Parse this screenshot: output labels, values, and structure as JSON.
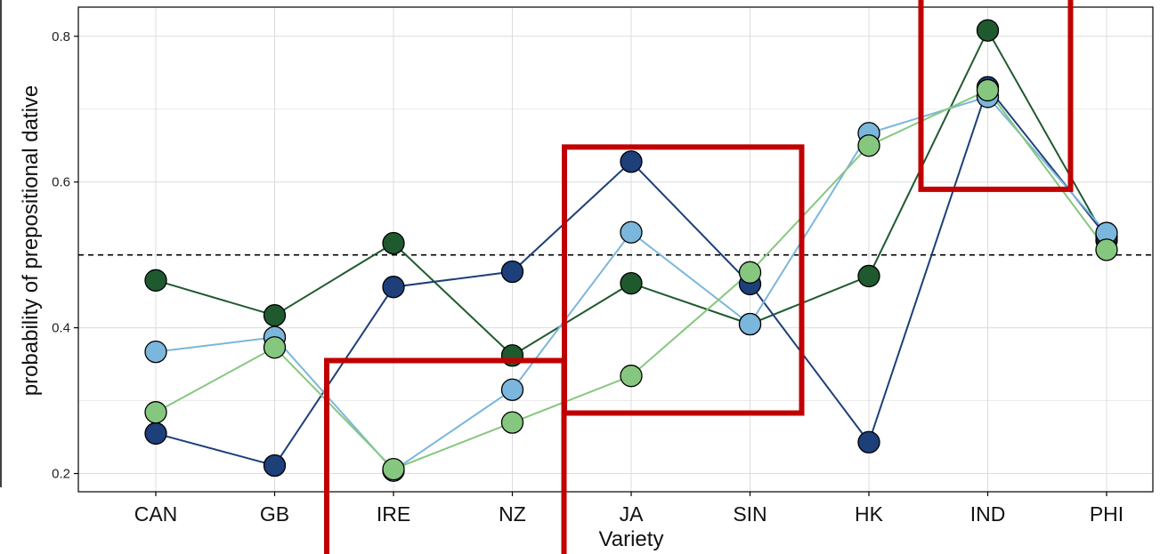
{
  "chart_data": {
    "type": "line",
    "xlabel": "Variety",
    "ylabel": "probability of prepositional dative",
    "categories": [
      "CAN",
      "GB",
      "IRE",
      "NZ",
      "JA",
      "SIN",
      "HK",
      "IND",
      "PHI"
    ],
    "ylim": [
      0.175,
      0.84
    ],
    "yticks": [
      0.2,
      0.4,
      0.6,
      0.8
    ],
    "ytick_labels": [
      "0.2",
      "0.4",
      "0.6",
      "0.8"
    ],
    "reference_line": 0.5,
    "grid": true,
    "legend": "none",
    "series": [
      {
        "color": "#1f5a2f",
        "values": [
          0.465,
          0.417,
          0.516,
          0.362,
          0.461,
          0.405,
          0.471,
          0.808,
          0.52
        ]
      },
      {
        "color": "#1d3f7a",
        "values": [
          0.255,
          0.211,
          0.456,
          0.477,
          0.628,
          0.46,
          0.243,
          0.73,
          0.525
        ]
      },
      {
        "color": "#7bb6dc",
        "values": [
          0.367,
          0.387,
          0.204,
          0.315,
          0.531,
          0.405,
          0.667,
          0.717,
          0.53
        ]
      },
      {
        "color": "#86c77f",
        "values": [
          0.284,
          0.373,
          0.206,
          0.27,
          0.334,
          0.476,
          0.65,
          0.726,
          0.507
        ]
      }
    ],
    "highlight_boxes": [
      {
        "color": "#c00000",
        "x_from": "IRE",
        "x_to": "NZ",
        "y_top": 0.355
      },
      {
        "color": "#c00000",
        "x_from": "JA",
        "x_to": "SIN",
        "y_top": 0.648,
        "y_bottom": 0.283
      },
      {
        "color": "#c00000",
        "x_from": "IND",
        "x_to": "IND",
        "y_bottom": 0.59
      }
    ]
  }
}
